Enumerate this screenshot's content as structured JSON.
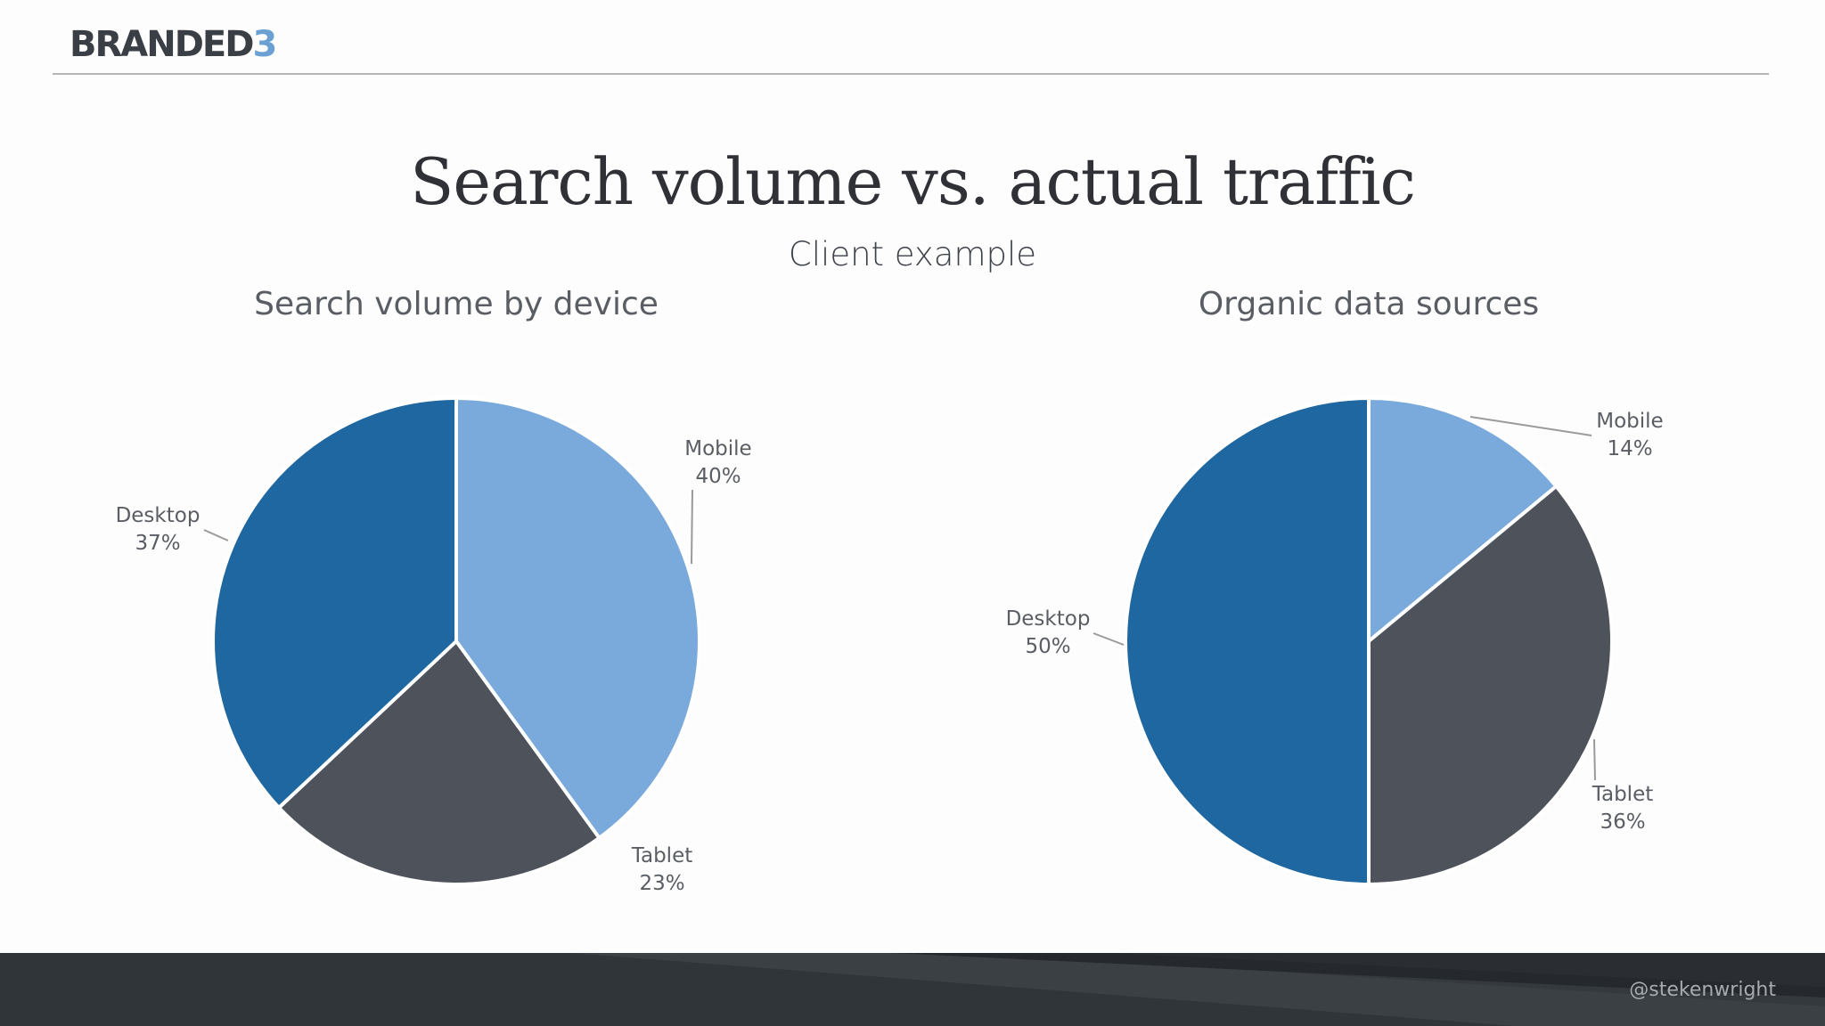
{
  "header": {
    "logo_text": "BRANDED",
    "logo_accent": "3"
  },
  "slide": {
    "title": "Search volume vs. actual traffic",
    "subtitle": "Client example"
  },
  "footer": {
    "handle": "@stekenwright"
  },
  "colors": {
    "mobile": "#7aa9db",
    "tablet": "#4e535b",
    "desktop": "#1f67a0",
    "slice_border": "#ffffff",
    "leader_line": "#9a9a9a"
  },
  "chart_data": [
    {
      "type": "pie",
      "title": "Search volume by device",
      "categories": [
        "Mobile",
        "Tablet",
        "Desktop"
      ],
      "values": [
        40,
        23,
        37
      ],
      "value_labels": [
        "40%",
        "23%",
        "37%"
      ],
      "legend": "none"
    },
    {
      "type": "pie",
      "title": "Organic data sources",
      "categories": [
        "Mobile",
        "Tablet",
        "Desktop"
      ],
      "values": [
        14,
        36,
        50
      ],
      "value_labels": [
        "14%",
        "36%",
        "50%"
      ],
      "legend": "none"
    }
  ]
}
